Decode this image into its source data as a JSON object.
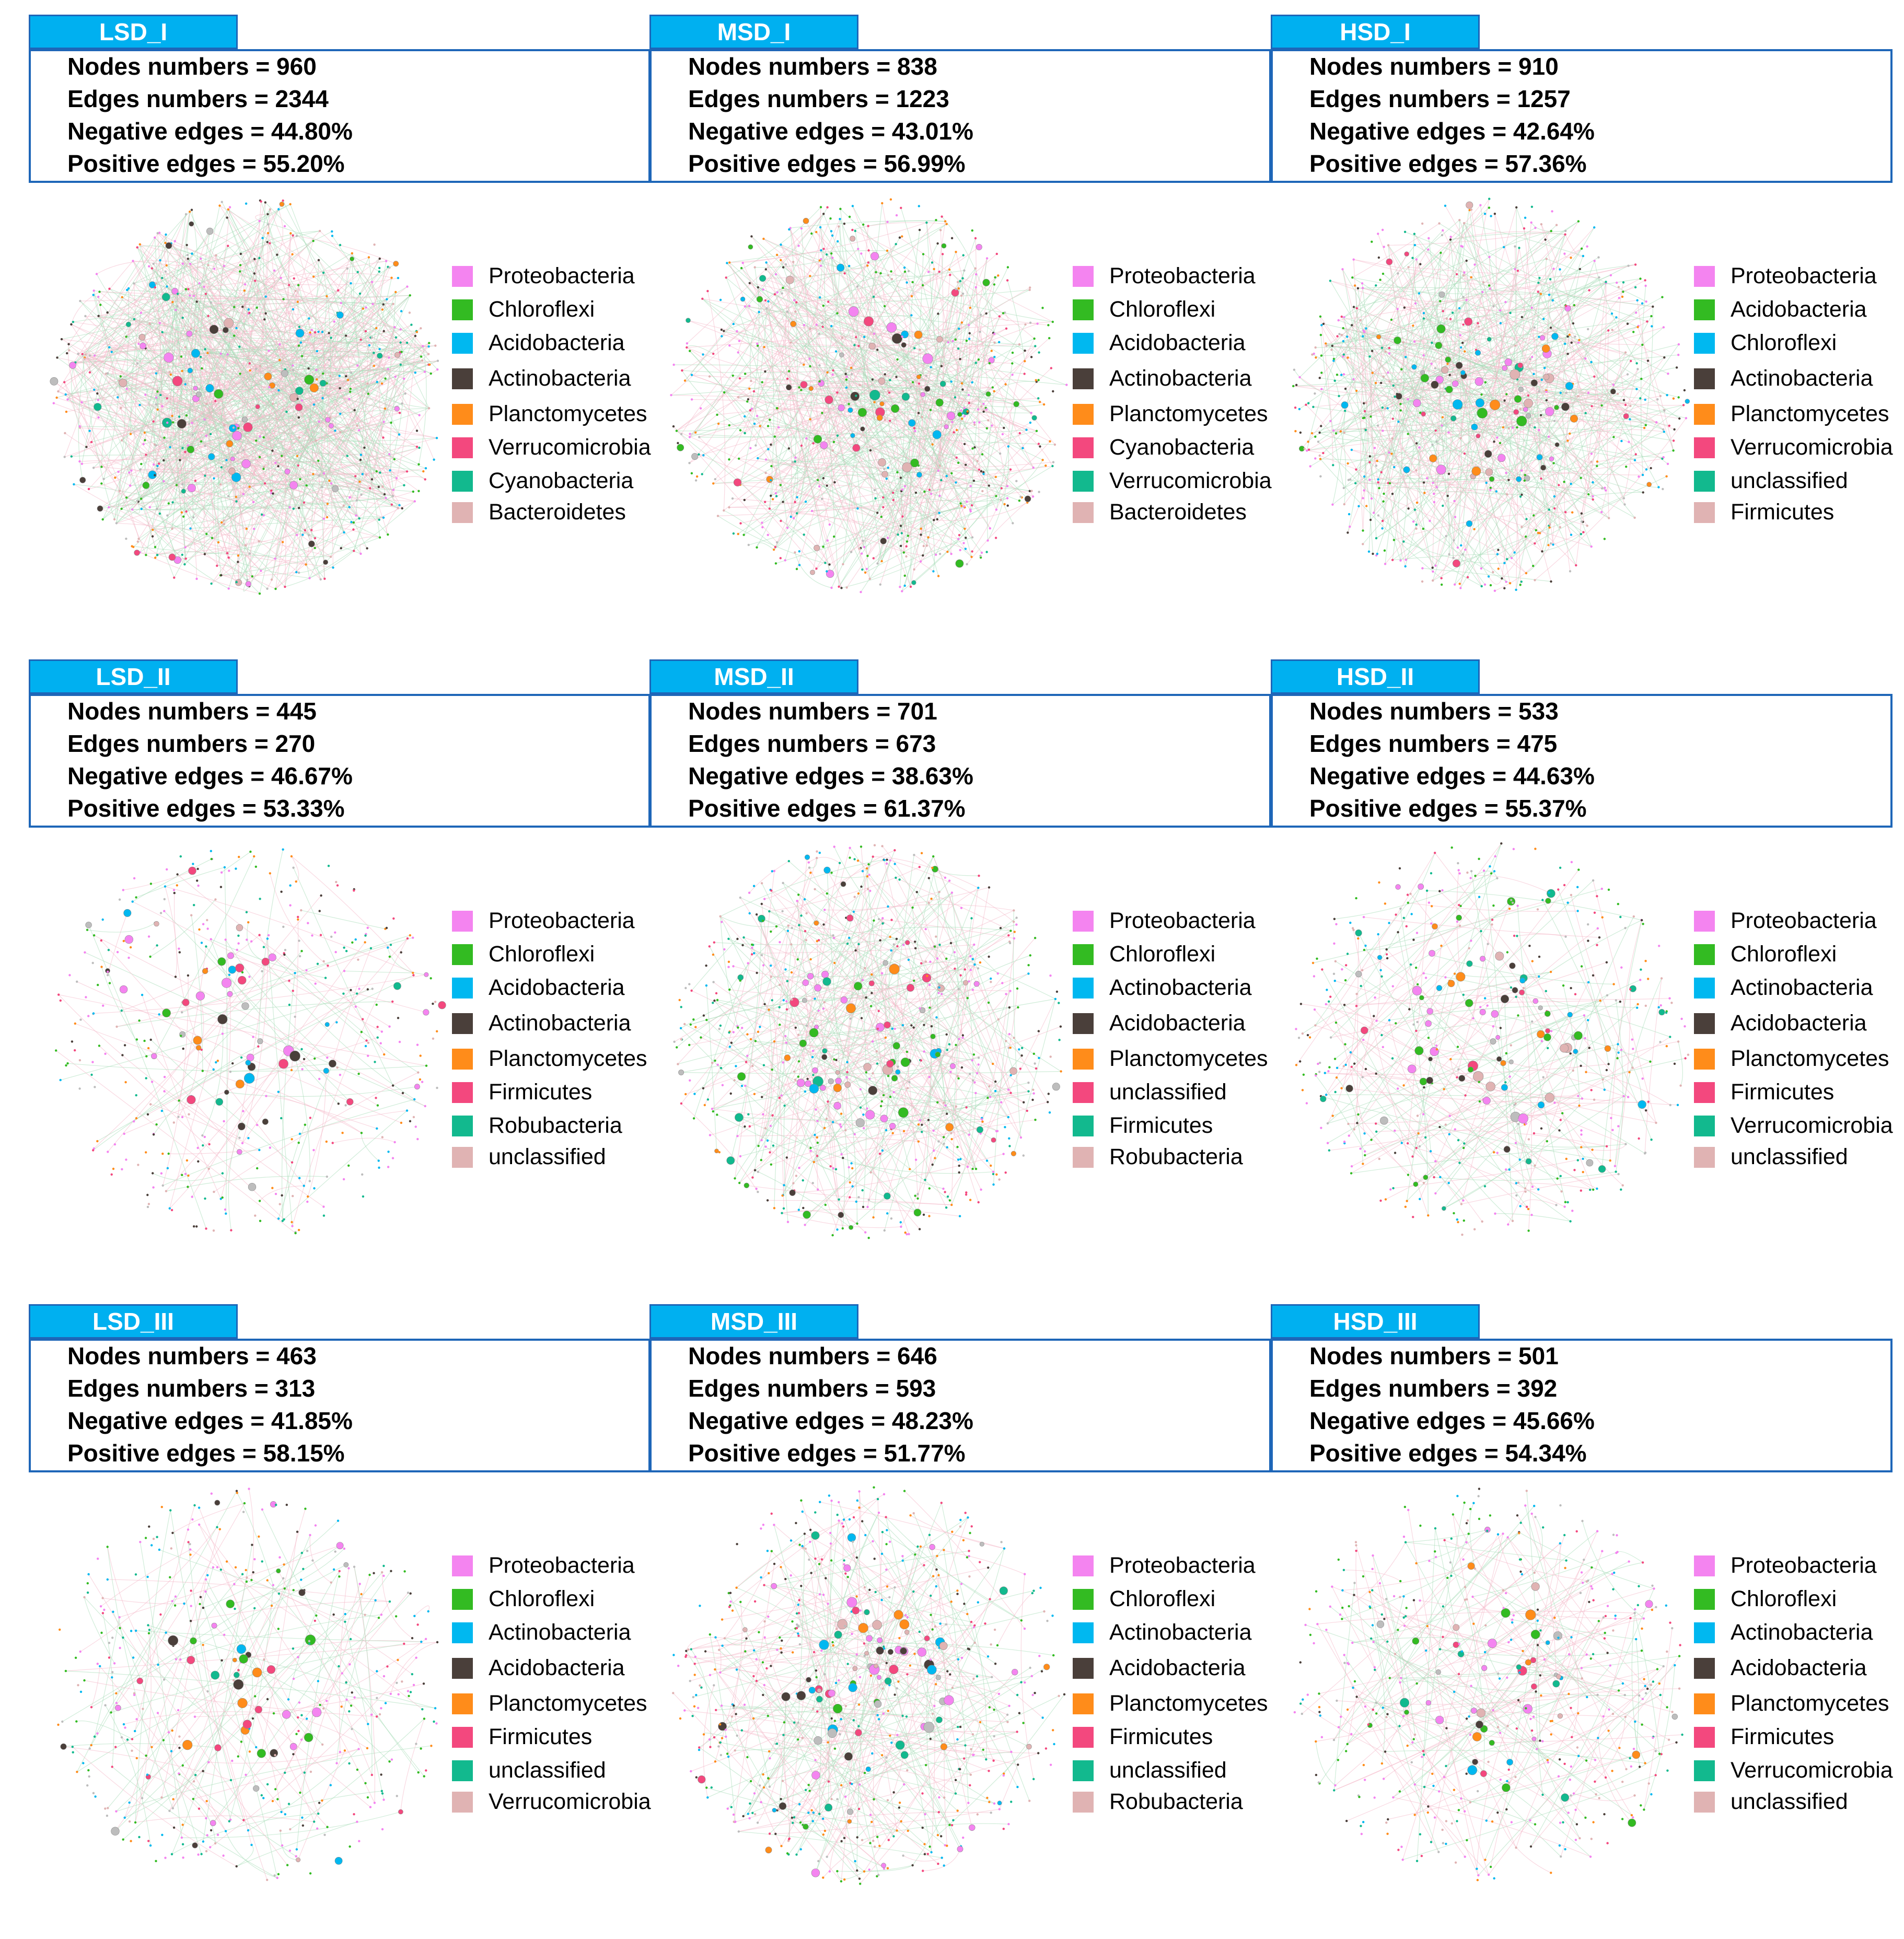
{
  "colors": {
    "tab_fill": "#00b0f0",
    "border": "#1e66b8",
    "Proteobacteria": "#f484f0",
    "Chloroflexi": "#33bb22",
    "Acidobacteria": "#00b8f0",
    "Actinobacteria": "#4a3f3a",
    "Planctomycetes": "#ff8c1a",
    "Verrucomicrobia": "#f3487e",
    "Cyanobacteria": "#12b98e",
    "Bacteroidetes": "#e0b3b3",
    "unclassified": "#e0b3b3",
    "Firmicutes": "#f3487e",
    "Robubacteria": "#12b98e"
  },
  "panels": [
    {
      "title": "LSD_I",
      "stats": [
        "Nodes numbers = 960",
        "Edges numbers = 2344",
        "Negative edges = 44.80%",
        "Positive edges = 55.20%"
      ],
      "legend": [
        {
          "label": "Proteobacteria",
          "color": "#f484f0"
        },
        {
          "label": "Chloroflexi",
          "color": "#33bb22"
        },
        {
          "label": "Acidobacteria",
          "color": "#00b8f0"
        },
        {
          "label": "Actinobacteria",
          "color": "#4a3f3a"
        },
        {
          "label": "Planctomycetes",
          "color": "#ff8c1a"
        },
        {
          "label": "Verrucomicrobia",
          "color": "#f3487e"
        },
        {
          "label": "Cyanobacteria",
          "color": "#12b98e"
        },
        {
          "label": "Bacteroidetes",
          "color": "#e0b3b3"
        }
      ],
      "network": {
        "nodes": 960,
        "density": 1.0
      }
    },
    {
      "title": "MSD_I",
      "stats": [
        "Nodes numbers = 838",
        "Edges numbers = 1223",
        "Negative edges = 43.01%",
        "Positive edges = 56.99%"
      ],
      "legend": [
        {
          "label": "Proteobacteria",
          "color": "#f484f0"
        },
        {
          "label": "Chloroflexi",
          "color": "#33bb22"
        },
        {
          "label": "Acidobacteria",
          "color": "#00b8f0"
        },
        {
          "label": "Actinobacteria",
          "color": "#4a3f3a"
        },
        {
          "label": "Planctomycetes",
          "color": "#ff8c1a"
        },
        {
          "label": "Cyanobacteria",
          "color": "#f3487e"
        },
        {
          "label": "Verrucomicrobia",
          "color": "#12b98e"
        },
        {
          "label": "Bacteroidetes",
          "color": "#e0b3b3"
        }
      ],
      "network": {
        "nodes": 838,
        "density": 0.6
      }
    },
    {
      "title": "HSD_I",
      "stats": [
        "Nodes numbers = 910",
        "Edges numbers = 1257",
        "Negative edges = 42.64%",
        "Positive edges = 57.36%"
      ],
      "legend": [
        {
          "label": "Proteobacteria",
          "color": "#f484f0"
        },
        {
          "label": "Acidobacteria",
          "color": "#33bb22"
        },
        {
          "label": "Chloroflexi",
          "color": "#00b8f0"
        },
        {
          "label": "Actinobacteria",
          "color": "#4a3f3a"
        },
        {
          "label": "Planctomycetes",
          "color": "#ff8c1a"
        },
        {
          "label": "Verrucomicrobia",
          "color": "#f3487e"
        },
        {
          "label": "unclassified",
          "color": "#12b98e"
        },
        {
          "label": "Firmicutes",
          "color": "#e0b3b3"
        }
      ],
      "network": {
        "nodes": 910,
        "density": 0.6
      }
    },
    {
      "title": "LSD_II",
      "stats": [
        "Nodes numbers = 445",
        "Edges numbers = 270",
        "Negative edges = 46.67%",
        "Positive edges = 53.33%"
      ],
      "legend": [
        {
          "label": "Proteobacteria",
          "color": "#f484f0"
        },
        {
          "label": "Chloroflexi",
          "color": "#33bb22"
        },
        {
          "label": "Acidobacteria",
          "color": "#00b8f0"
        },
        {
          "label": "Actinobacteria",
          "color": "#4a3f3a"
        },
        {
          "label": "Planctomycetes",
          "color": "#ff8c1a"
        },
        {
          "label": "Firmicutes",
          "color": "#f3487e"
        },
        {
          "label": "Robubacteria",
          "color": "#12b98e"
        },
        {
          "label": "unclassified",
          "color": "#e0b3b3"
        }
      ],
      "network": {
        "nodes": 445,
        "density": 0.2
      }
    },
    {
      "title": "MSD_II",
      "stats": [
        "Nodes numbers = 701",
        "Edges numbers = 673",
        "Negative edges = 38.63%",
        "Positive edges = 61.37%"
      ],
      "legend": [
        {
          "label": "Proteobacteria",
          "color": "#f484f0"
        },
        {
          "label": "Chloroflexi",
          "color": "#33bb22"
        },
        {
          "label": "Actinobacteria",
          "color": "#00b8f0"
        },
        {
          "label": "Acidobacteria",
          "color": "#4a3f3a"
        },
        {
          "label": "Planctomycetes",
          "color": "#ff8c1a"
        },
        {
          "label": "unclassified",
          "color": "#f3487e"
        },
        {
          "label": "Firmicutes",
          "color": "#12b98e"
        },
        {
          "label": "Robubacteria",
          "color": "#e0b3b3"
        }
      ],
      "network": {
        "nodes": 701,
        "density": 0.4
      }
    },
    {
      "title": "HSD_II",
      "stats": [
        "Nodes numbers = 533",
        "Edges numbers = 475",
        "Negative edges = 44.63%",
        "Positive edges = 55.37%"
      ],
      "legend": [
        {
          "label": "Proteobacteria",
          "color": "#f484f0"
        },
        {
          "label": "Chloroflexi",
          "color": "#33bb22"
        },
        {
          "label": "Actinobacteria",
          "color": "#00b8f0"
        },
        {
          "label": "Acidobacteria",
          "color": "#4a3f3a"
        },
        {
          "label": "Planctomycetes",
          "color": "#ff8c1a"
        },
        {
          "label": "Firmicutes",
          "color": "#f3487e"
        },
        {
          "label": "Verrucomicrobia",
          "color": "#12b98e"
        },
        {
          "label": "unclassified",
          "color": "#e0b3b3"
        }
      ],
      "network": {
        "nodes": 533,
        "density": 0.3
      }
    },
    {
      "title": "LSD_III",
      "stats": [
        "Nodes numbers = 463",
        "Edges numbers = 313",
        "Negative edges = 41.85%",
        "Positive edges = 58.15%"
      ],
      "legend": [
        {
          "label": "Proteobacteria",
          "color": "#f484f0"
        },
        {
          "label": "Chloroflexi",
          "color": "#33bb22"
        },
        {
          "label": "Actinobacteria",
          "color": "#00b8f0"
        },
        {
          "label": "Acidobacteria",
          "color": "#4a3f3a"
        },
        {
          "label": "Planctomycetes",
          "color": "#ff8c1a"
        },
        {
          "label": "Firmicutes",
          "color": "#f3487e"
        },
        {
          "label": "unclassified",
          "color": "#12b98e"
        },
        {
          "label": "Verrucomicrobia",
          "color": "#e0b3b3"
        }
      ],
      "network": {
        "nodes": 463,
        "density": 0.25
      }
    },
    {
      "title": "MSD_III",
      "stats": [
        "Nodes numbers = 646",
        "Edges numbers = 593",
        "Negative edges = 48.23%",
        "Positive edges = 51.77%"
      ],
      "legend": [
        {
          "label": "Proteobacteria",
          "color": "#f484f0"
        },
        {
          "label": "Chloroflexi",
          "color": "#33bb22"
        },
        {
          "label": "Actinobacteria",
          "color": "#00b8f0"
        },
        {
          "label": "Acidobacteria",
          "color": "#4a3f3a"
        },
        {
          "label": "Planctomycetes",
          "color": "#ff8c1a"
        },
        {
          "label": "Firmicutes",
          "color": "#f3487e"
        },
        {
          "label": "unclassified",
          "color": "#12b98e"
        },
        {
          "label": "Robubacteria",
          "color": "#e0b3b3"
        }
      ],
      "network": {
        "nodes": 646,
        "density": 0.35
      }
    },
    {
      "title": "HSD_III",
      "stats": [
        "Nodes numbers = 501",
        "Edges numbers = 392",
        "Negative edges = 45.66%",
        "Positive edges = 54.34%"
      ],
      "legend": [
        {
          "label": "Proteobacteria",
          "color": "#f484f0"
        },
        {
          "label": "Chloroflexi",
          "color": "#33bb22"
        },
        {
          "label": "Actinobacteria",
          "color": "#00b8f0"
        },
        {
          "label": "Acidobacteria",
          "color": "#4a3f3a"
        },
        {
          "label": "Planctomycetes",
          "color": "#ff8c1a"
        },
        {
          "label": "Firmicutes",
          "color": "#f3487e"
        },
        {
          "label": "Verrucomicrobia",
          "color": "#12b98e"
        },
        {
          "label": "unclassified",
          "color": "#e0b3b3"
        }
      ],
      "network": {
        "nodes": 501,
        "density": 0.3
      }
    }
  ]
}
